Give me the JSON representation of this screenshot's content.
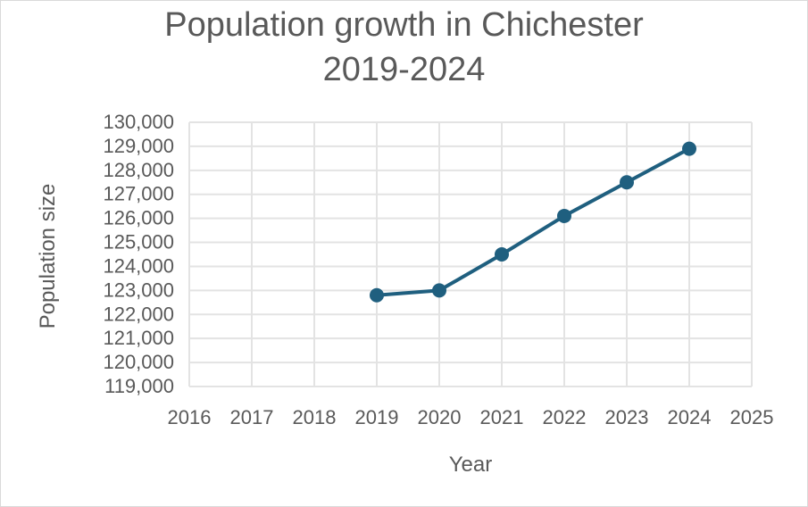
{
  "chart_data": {
    "type": "line",
    "title_lines": [
      "Population growth in Chichester",
      "2019-2024"
    ],
    "xlabel": "Year",
    "ylabel": "Population size",
    "xlim": [
      2016,
      2025
    ],
    "ylim": [
      119000,
      130000
    ],
    "x_ticks": [
      "2016",
      "2017",
      "2018",
      "2019",
      "2020",
      "2021",
      "2022",
      "2023",
      "2024",
      "2025"
    ],
    "y_ticks": [
      "119,000",
      "120,000",
      "121,000",
      "122,000",
      "123,000",
      "124,000",
      "125,000",
      "126,000",
      "127,000",
      "128,000",
      "129,000",
      "130,000"
    ],
    "grid": true,
    "series": [
      {
        "color": "#1f5f7f",
        "x": [
          2019,
          2020,
          2021,
          2022,
          2023,
          2024
        ],
        "y": [
          122800,
          123000,
          124500,
          126100,
          127500,
          128900
        ]
      }
    ]
  }
}
